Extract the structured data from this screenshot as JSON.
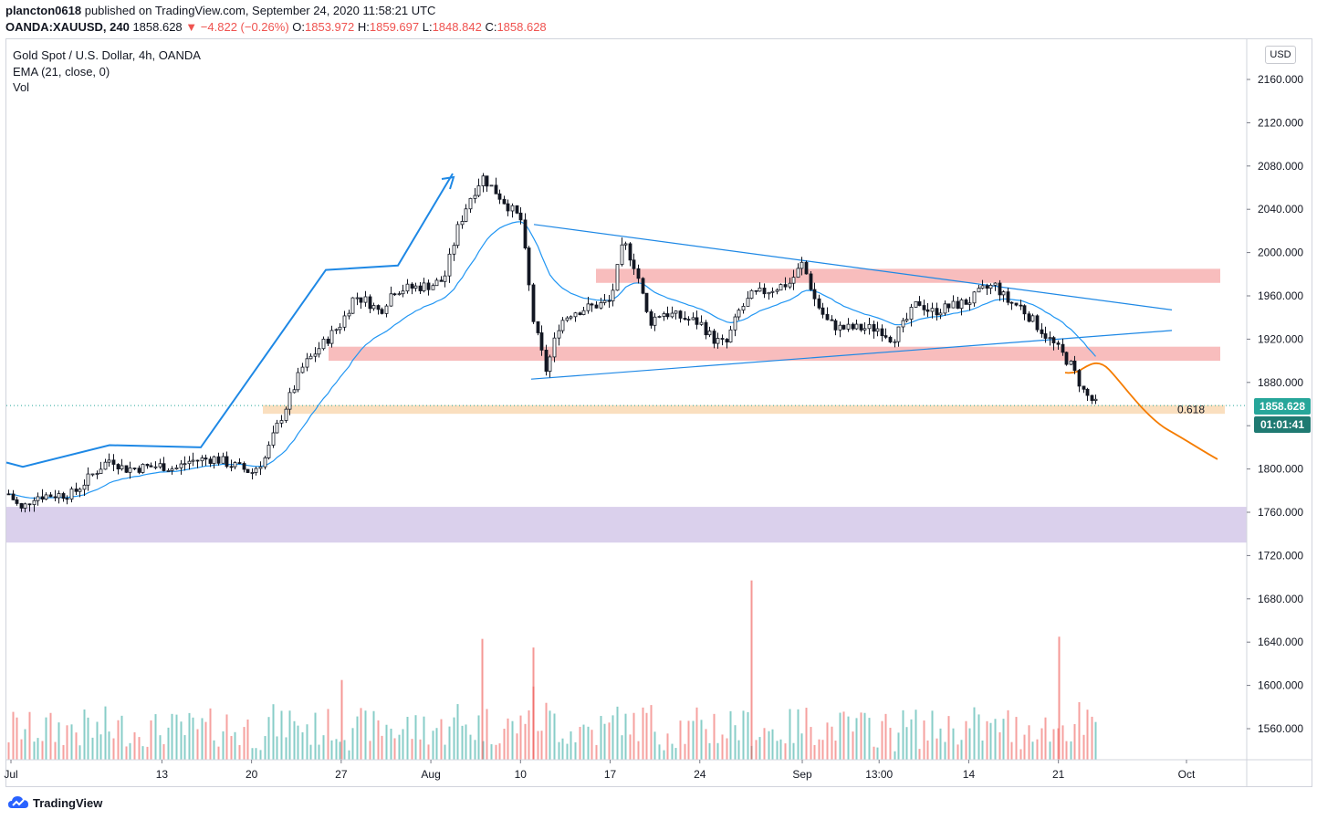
{
  "header": {
    "publisher": "plancton0618",
    "publish_text": "published on TradingView.com, September 24, 2020 11:58:21 UTC",
    "symbol": "OANDA:XAUUSD, 240",
    "last": "1858.628",
    "change": "−4.822 (−0.26%)",
    "o_label": "O:",
    "o_value": "1853.972",
    "h_label": "H:",
    "h_value": "1859.697",
    "l_label": "L:",
    "l_value": "1848.842",
    "c_label": "C:",
    "c_value": "1858.628"
  },
  "legend": {
    "title": "Gold Spot / U.S. Dollar, 4h, OANDA",
    "ema": "EMA (21, close, 0)",
    "vol": "Vol"
  },
  "price_axis": {
    "currency": "USD",
    "current_price": "1858.628",
    "countdown": "01:01:41",
    "current_color": "#26a69a"
  },
  "footer": {
    "brand": "TradingView"
  },
  "colors": {
    "up": "#26a69a",
    "down": "#ef5350",
    "ema": "#2196f3",
    "trend": "#1e88e5",
    "forecast": "#f57c00",
    "zone_red": "#f7b6b6",
    "zone_orange": "#fadcb8",
    "zone_purple": "#d6cbea"
  },
  "chart_data": {
    "type": "candlestick",
    "symbol": "XAUUSD",
    "interval": "4h",
    "y_ticks": [
      "2160.000",
      "2120.000",
      "2080.000",
      "2040.000",
      "2000.000",
      "1960.000",
      "1920.000",
      "1880.000",
      "1840.000",
      "1800.000",
      "1760.000",
      "1720.000",
      "1680.000",
      "1640.000",
      "1600.000",
      "1560.000"
    ],
    "x_ticks": [
      "Jul",
      "13",
      "20",
      "27",
      "Aug",
      "10",
      "17",
      "24",
      "Sep",
      "13:00",
      "14",
      "21",
      "Oct"
    ],
    "annotations": {
      "fib_label": "0.618",
      "fib_level": 1855,
      "resistance_zone": [
        1972,
        1985
      ],
      "mid_zone": [
        1900,
        1913
      ],
      "low_zone": [
        1732,
        1765
      ]
    },
    "ema_label": "EMA (21, close, 0)",
    "price_path": [
      [
        "2020-07-01",
        1777
      ],
      [
        "2020-07-02",
        1762
      ],
      [
        "2020-07-03",
        1775
      ],
      [
        "2020-07-06",
        1777
      ],
      [
        "2020-07-08",
        1800
      ],
      [
        "2020-07-09",
        1810
      ],
      [
        "2020-07-10",
        1800
      ],
      [
        "2020-07-13",
        1803
      ],
      [
        "2020-07-14",
        1800
      ],
      [
        "2020-07-15",
        1807
      ],
      [
        "2020-07-17",
        1810
      ],
      [
        "2020-07-20",
        1797
      ],
      [
        "2020-07-21",
        1810
      ],
      [
        "2020-07-22",
        1840
      ],
      [
        "2020-07-24",
        1895
      ],
      [
        "2020-07-27",
        1935
      ],
      [
        "2020-07-28",
        1960
      ],
      [
        "2020-07-29",
        1955
      ],
      [
        "2020-07-30",
        1945
      ],
      [
        "2020-07-31",
        1965
      ],
      [
        "2020-08-03",
        1970
      ],
      [
        "2020-08-04",
        1975
      ],
      [
        "2020-08-05",
        2020
      ],
      [
        "2020-08-06",
        2050
      ],
      [
        "2020-08-07",
        2070
      ],
      [
        "2020-08-10",
        2030
      ],
      [
        "2020-08-11",
        1935
      ],
      [
        "2020-08-12",
        1890
      ],
      [
        "2020-08-13",
        1935
      ],
      [
        "2020-08-14",
        1945
      ],
      [
        "2020-08-17",
        1955
      ],
      [
        "2020-08-18",
        2010
      ],
      [
        "2020-08-19",
        1985
      ],
      [
        "2020-08-20",
        1935
      ],
      [
        "2020-08-21",
        1945
      ],
      [
        "2020-08-24",
        1935
      ],
      [
        "2020-08-25",
        1920
      ],
      [
        "2020-08-26",
        1915
      ],
      [
        "2020-08-27",
        1945
      ],
      [
        "2020-08-28",
        1960
      ],
      [
        "2020-08-31",
        1972
      ],
      [
        "2020-09-01",
        1990
      ],
      [
        "2020-09-02",
        1955
      ],
      [
        "2020-09-03",
        1935
      ],
      [
        "2020-09-04",
        1930
      ],
      [
        "2020-09-07",
        1930
      ],
      [
        "2020-09-08",
        1920
      ],
      [
        "2020-09-09",
        1935
      ],
      [
        "2020-09-10",
        1955
      ],
      [
        "2020-09-11",
        1945
      ],
      [
        "2020-09-14",
        1955
      ],
      [
        "2020-09-15",
        1965
      ],
      [
        "2020-09-16",
        1970
      ],
      [
        "2020-09-17",
        1955
      ],
      [
        "2020-09-18",
        1950
      ],
      [
        "2020-09-21",
        1910
      ],
      [
        "2020-09-22",
        1895
      ],
      [
        "2020-09-23",
        1870
      ],
      [
        "2020-09-24",
        1858.628
      ]
    ],
    "volume_peaks": [
      [
        "2020-07-27",
        1605
      ],
      [
        "2020-08-07",
        1643
      ],
      [
        "2020-08-11",
        1635
      ],
      [
        "2020-08-28",
        1697
      ],
      [
        "2020-09-21",
        1645
      ]
    ]
  }
}
